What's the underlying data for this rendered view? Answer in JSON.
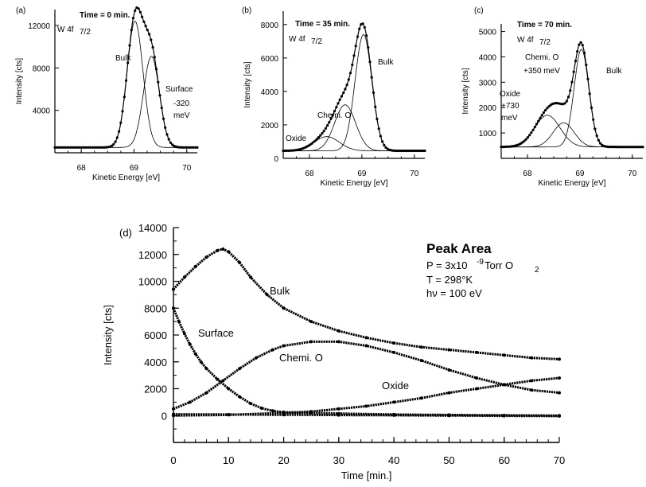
{
  "chart_data": [
    {
      "panel": "(a)",
      "type": "line",
      "title": "Time = 0 min.",
      "subtitle": "W 4f",
      "subtitle_sub": "7/2",
      "xlabel": "Kinetic Energy [eV]",
      "ylabel": "Intensity [cts]",
      "xlim": [
        67.5,
        70.2
      ],
      "ylim": [
        0,
        13500
      ],
      "xticks": [
        68,
        69,
        70
      ],
      "yticks": [
        4000,
        8000,
        12000
      ],
      "peaks": [
        {
          "name": "Bulk",
          "center": 69.02,
          "height": 12400,
          "width": 0.15
        },
        {
          "name": "Surface",
          "center": 69.33,
          "height": 9100,
          "width": 0.15
        }
      ],
      "background": 500,
      "annotations": [
        "Bulk",
        "Surface",
        "-320",
        "meV"
      ]
    },
    {
      "panel": "(b)",
      "type": "line",
      "title": "Time = 35 min.",
      "subtitle": "W 4f",
      "subtitle_sub": "7/2",
      "xlabel": "Kinetic Energy [eV]",
      "ylabel": "Intensity [cts]",
      "xlim": [
        67.5,
        70.2
      ],
      "ylim": [
        0,
        8800
      ],
      "xticks": [
        68,
        69,
        70
      ],
      "yticks": [
        0,
        2000,
        4000,
        6000,
        8000
      ],
      "peaks": [
        {
          "name": "Bulk",
          "center": 69.03,
          "height": 7400,
          "width": 0.16
        },
        {
          "name": "Chemi. O",
          "center": 68.68,
          "height": 3200,
          "width": 0.2
        },
        {
          "name": "Oxide",
          "center": 68.33,
          "height": 1300,
          "width": 0.24
        }
      ],
      "background": 450,
      "annotations": [
        "Bulk",
        "Chemi. O",
        "Oxide"
      ]
    },
    {
      "panel": "(c)",
      "type": "line",
      "title": "Time = 70 min.",
      "subtitle": "W 4f",
      "subtitle_sub": "7/2",
      "xlabel": "Kinetic Energy [eV]",
      "ylabel": "Intensity [cts]",
      "xlim": [
        67.5,
        70.2
      ],
      "ylim": [
        0,
        5300
      ],
      "xticks": [
        68,
        69,
        70
      ],
      "yticks": [
        1000,
        2000,
        3000,
        4000,
        5000
      ],
      "peaks": [
        {
          "name": "Bulk",
          "center": 69.03,
          "height": 4300,
          "width": 0.14
        },
        {
          "name": "Chemi. O",
          "center": 68.69,
          "height": 1400,
          "width": 0.2
        },
        {
          "name": "Oxide",
          "center": 68.38,
          "height": 1700,
          "width": 0.24
        }
      ],
      "background": 450,
      "annotations": [
        "Bulk",
        "Chemi. O",
        "+350 meV",
        "Oxide",
        "+730",
        "meV"
      ]
    },
    {
      "panel": "(d)",
      "type": "scatter",
      "xlabel": "Time [min.]",
      "ylabel": "Intensity [cts]",
      "xlim": [
        0,
        70
      ],
      "ylim": [
        -2000,
        14000
      ],
      "xticks": [
        0,
        10,
        20,
        30,
        40,
        50,
        60,
        70
      ],
      "yticks": [
        0,
        2000,
        4000,
        6000,
        8000,
        10000,
        12000,
        14000
      ],
      "legend_box": {
        "title": "Peak Area",
        "lines": [
          "P = 3x10",
          "-9",
          " Torr O",
          "2",
          "T = 298°K",
          "hν = 100 eV"
        ]
      },
      "series": [
        {
          "name": "Bulk",
          "x": [
            0,
            2,
            4,
            6,
            8,
            9,
            10,
            12,
            14,
            17,
            20,
            25,
            30,
            35,
            40,
            45,
            50,
            55,
            60,
            65,
            70
          ],
          "values": [
            9400,
            10300,
            11100,
            11800,
            12300,
            12400,
            12200,
            11400,
            10300,
            9000,
            8000,
            7000,
            6300,
            5800,
            5400,
            5100,
            4900,
            4700,
            4500,
            4300,
            4200
          ]
        },
        {
          "name": "Surface",
          "x": [
            0,
            1,
            2,
            3,
            4,
            5,
            6,
            8,
            10,
            12,
            14,
            16,
            18,
            20,
            25,
            30,
            40,
            50,
            60,
            70
          ],
          "values": [
            8000,
            7000,
            6100,
            5300,
            4600,
            4000,
            3500,
            2700,
            2000,
            1400,
            900,
            550,
            350,
            250,
            200,
            150,
            80,
            50,
            20,
            0
          ]
        },
        {
          "name": "Chemi. O",
          "x": [
            0,
            3,
            6,
            9,
            12,
            15,
            18,
            20,
            25,
            30,
            35,
            40,
            45,
            50,
            55,
            60,
            65,
            70
          ],
          "values": [
            500,
            1000,
            1700,
            2600,
            3500,
            4300,
            4900,
            5200,
            5500,
            5500,
            5200,
            4700,
            4100,
            3400,
            2800,
            2300,
            1900,
            1700
          ]
        },
        {
          "name": "Oxide",
          "x": [
            0,
            10,
            20,
            25,
            30,
            35,
            40,
            45,
            50,
            55,
            60,
            65,
            70
          ],
          "values": [
            0,
            50,
            200,
            300,
            500,
            700,
            1000,
            1300,
            1700,
            2000,
            2300,
            2600,
            2800
          ]
        },
        {
          "name": "",
          "x": [
            0,
            10,
            20,
            30,
            40,
            50,
            60,
            70
          ],
          "values": [
            100,
            80,
            60,
            40,
            20,
            0,
            -20,
            -40
          ]
        }
      ],
      "annotations": [
        "Bulk",
        "Surface",
        "Chemi. O",
        "Oxide"
      ]
    }
  ]
}
